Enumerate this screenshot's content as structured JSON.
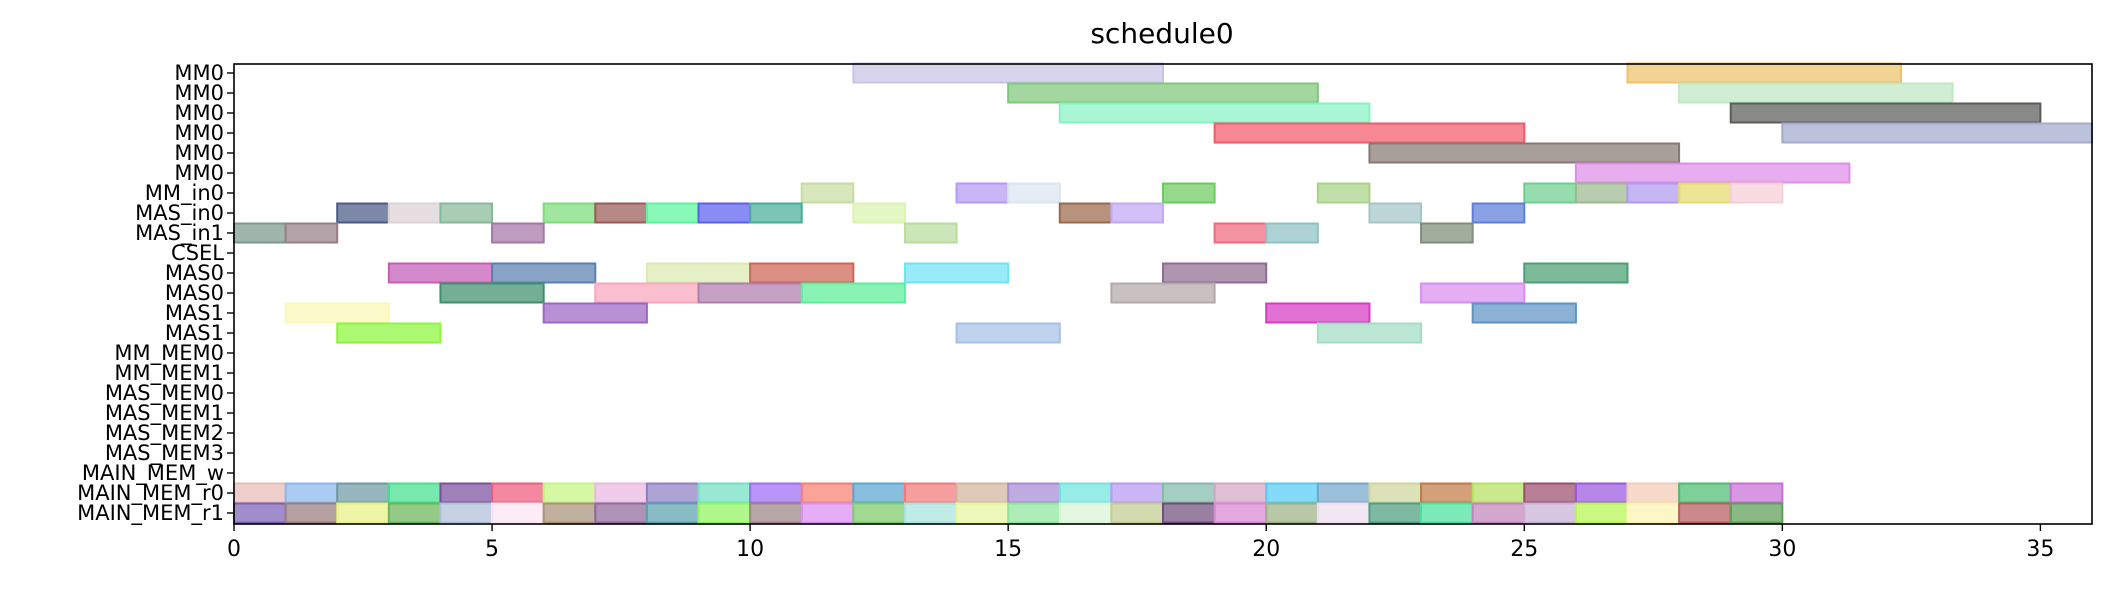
{
  "chart_data": {
    "type": "gantt",
    "title": "schedule0",
    "xlabel": "",
    "ylabel": "",
    "xlim": [
      0,
      36
    ],
    "xticks": [
      "0",
      "5",
      "10",
      "15",
      "20",
      "25",
      "30",
      "35"
    ],
    "rows": [
      "MM0",
      "MM0",
      "MM0",
      "MM0",
      "MM0",
      "MM0",
      "MM_in0",
      "MAS_in0",
      "MAS_in1",
      "CSEL",
      "MAS0",
      "MAS0",
      "MAS1",
      "MAS1",
      "MM_MEM0",
      "MM_MEM1",
      "MAS_MEM0",
      "MAS_MEM1",
      "MAS_MEM2",
      "MAS_MEM3",
      "MAIN_MEM_w",
      "MAIN_MEM_r0",
      "MAIN_MEM_r1"
    ],
    "bars": [
      {
        "row": 0,
        "start": 12,
        "end": 18,
        "color": "#c9c3e8"
      },
      {
        "row": 0,
        "start": 27,
        "end": 32.3,
        "color": "#eec26a"
      },
      {
        "row": 1,
        "start": 15,
        "end": 21,
        "color": "#7fc77a"
      },
      {
        "row": 1,
        "start": 28,
        "end": 33.3,
        "color": "#bfe8c4"
      },
      {
        "row": 2,
        "start": 16,
        "end": 22,
        "color": "#88f2c4"
      },
      {
        "row": 2,
        "start": 29,
        "end": 35,
        "color": "#5b5d5a"
      },
      {
        "row": 3,
        "start": 19,
        "end": 25,
        "color": "#f25a6b"
      },
      {
        "row": 3,
        "start": 30,
        "end": 36,
        "color": "#a4abcd"
      },
      {
        "row": 4,
        "start": 22,
        "end": 28,
        "color": "#877873"
      },
      {
        "row": 5,
        "start": 26,
        "end": 31.3,
        "color": "#df8de9"
      },
      {
        "row": 6,
        "start": 11,
        "end": 12,
        "color": "#c7dca3"
      },
      {
        "row": 6,
        "start": 14,
        "end": 15,
        "color": "#b49af4"
      },
      {
        "row": 6,
        "start": 15,
        "end": 16,
        "color": "#dbe4ef"
      },
      {
        "row": 6,
        "start": 18,
        "end": 19,
        "color": "#6ccb5e"
      },
      {
        "row": 6,
        "start": 21,
        "end": 22,
        "color": "#a8d38a"
      },
      {
        "row": 6,
        "start": 25,
        "end": 26,
        "color": "#6fcf8f"
      },
      {
        "row": 6,
        "start": 26,
        "end": 27,
        "color": "#9cb98f"
      },
      {
        "row": 6,
        "start": 27,
        "end": 28,
        "color": "#b19af0"
      },
      {
        "row": 6,
        "start": 28,
        "end": 29,
        "color": "#e6da6e"
      },
      {
        "row": 6,
        "start": 29,
        "end": 30,
        "color": "#f4cfd5"
      },
      {
        "row": 7,
        "start": 2,
        "end": 3,
        "color": "#4b5a86"
      },
      {
        "row": 7,
        "start": 3,
        "end": 4,
        "color": "#ddd3d6"
      },
      {
        "row": 7,
        "start": 4,
        "end": 5,
        "color": "#86b997"
      },
      {
        "row": 7,
        "start": 6,
        "end": 7,
        "color": "#7ddd79"
      },
      {
        "row": 7,
        "start": 7,
        "end": 8,
        "color": "#9b5b58"
      },
      {
        "row": 7,
        "start": 8,
        "end": 9,
        "color": "#5bf59e"
      },
      {
        "row": 7,
        "start": 9,
        "end": 10,
        "color": "#5a60ee"
      },
      {
        "row": 7,
        "start": 10,
        "end": 11,
        "color": "#46ae98"
      },
      {
        "row": 7,
        "start": 12,
        "end": 13,
        "color": "#d9f5ae"
      },
      {
        "row": 7,
        "start": 16,
        "end": 17,
        "color": "#9b6a4b"
      },
      {
        "row": 7,
        "start": 17,
        "end": 18,
        "color": "#c3a8f5"
      },
      {
        "row": 7,
        "start": 22,
        "end": 23,
        "color": "#a5c6c7"
      },
      {
        "row": 7,
        "start": 24,
        "end": 25,
        "color": "#5d7ed9"
      },
      {
        "row": 8,
        "start": 0,
        "end": 1,
        "color": "#7c9a8d"
      },
      {
        "row": 8,
        "start": 1,
        "end": 2,
        "color": "#977f86"
      },
      {
        "row": 8,
        "start": 5,
        "end": 6,
        "color": "#a576a7"
      },
      {
        "row": 8,
        "start": 13,
        "end": 14,
        "color": "#b9dca0"
      },
      {
        "row": 8,
        "start": 19,
        "end": 20,
        "color": "#ef6a7e"
      },
      {
        "row": 8,
        "start": 20,
        "end": 21,
        "color": "#8fc1c2"
      },
      {
        "row": 8,
        "start": 23,
        "end": 24,
        "color": "#7e8e78"
      },
      {
        "row": 10,
        "start": 3,
        "end": 5,
        "color": "#c45db6"
      },
      {
        "row": 10,
        "start": 5,
        "end": 7,
        "color": "#5b7fb0"
      },
      {
        "row": 10,
        "start": 8,
        "end": 10,
        "color": "#dceab0"
      },
      {
        "row": 10,
        "start": 10,
        "end": 12,
        "color": "#cd6555"
      },
      {
        "row": 10,
        "start": 13,
        "end": 15,
        "color": "#72e3f4"
      },
      {
        "row": 10,
        "start": 18,
        "end": 20,
        "color": "#8f6c91"
      },
      {
        "row": 10,
        "start": 25,
        "end": 27,
        "color": "#4b9f73"
      },
      {
        "row": 11,
        "start": 4,
        "end": 6,
        "color": "#3f8f6c"
      },
      {
        "row": 11,
        "start": 7,
        "end": 9,
        "color": "#f8a6bd"
      },
      {
        "row": 11,
        "start": 9,
        "end": 11,
        "color": "#b17dae"
      },
      {
        "row": 11,
        "start": 11,
        "end": 13,
        "color": "#5cef9a"
      },
      {
        "row": 11,
        "start": 17,
        "end": 19,
        "color": "#b3a9ab"
      },
      {
        "row": 11,
        "start": 23,
        "end": 25,
        "color": "#da8df0"
      },
      {
        "row": 12,
        "start": 1,
        "end": 3,
        "color": "#fbf8b6"
      },
      {
        "row": 12,
        "start": 6,
        "end": 8,
        "color": "#9c66c4"
      },
      {
        "row": 12,
        "start": 20,
        "end": 22,
        "color": "#d53bc4"
      },
      {
        "row": 12,
        "start": 24,
        "end": 26,
        "color": "#5e93c3"
      },
      {
        "row": 13,
        "start": 2,
        "end": 4,
        "color": "#8cf53c"
      },
      {
        "row": 13,
        "start": 14,
        "end": 16,
        "color": "#a6c0e7"
      },
      {
        "row": 13,
        "start": 21,
        "end": 23,
        "color": "#a2dec5"
      },
      {
        "row": 21,
        "start": 0,
        "end": 1,
        "color": "#e8bcb5"
      },
      {
        "row": 21,
        "start": 1,
        "end": 2,
        "color": "#8ab7ee"
      },
      {
        "row": 21,
        "start": 2,
        "end": 3,
        "color": "#6f9aa4"
      },
      {
        "row": 21,
        "start": 3,
        "end": 4,
        "color": "#44e08d"
      },
      {
        "row": 21,
        "start": 4,
        "end": 5,
        "color": "#7b4f9c"
      },
      {
        "row": 21,
        "start": 5,
        "end": 6,
        "color": "#ef5c7c"
      },
      {
        "row": 21,
        "start": 6,
        "end": 7,
        "color": "#c4f57f"
      },
      {
        "row": 21,
        "start": 7,
        "end": 8,
        "color": "#eab8e2"
      },
      {
        "row": 21,
        "start": 8,
        "end": 9,
        "color": "#8e7fc3"
      },
      {
        "row": 21,
        "start": 9,
        "end": 10,
        "color": "#6fe1c4"
      },
      {
        "row": 21,
        "start": 10,
        "end": 11,
        "color": "#a06cf5"
      },
      {
        "row": 21,
        "start": 11,
        "end": 12,
        "color": "#f77f71"
      },
      {
        "row": 21,
        "start": 12,
        "end": 13,
        "color": "#5aa6d3"
      },
      {
        "row": 21,
        "start": 13,
        "end": 14,
        "color": "#f4787a"
      },
      {
        "row": 21,
        "start": 14,
        "end": 15,
        "color": "#d3b59f"
      },
      {
        "row": 21,
        "start": 15,
        "end": 16,
        "color": "#a88ad5"
      },
      {
        "row": 21,
        "start": 16,
        "end": 17,
        "color": "#6ee4dc"
      },
      {
        "row": 21,
        "start": 17,
        "end": 18,
        "color": "#b89af3"
      },
      {
        "row": 21,
        "start": 18,
        "end": 19,
        "color": "#7fbba9"
      },
      {
        "row": 21,
        "start": 19,
        "end": 20,
        "color": "#d3a7c4"
      },
      {
        "row": 21,
        "start": 20,
        "end": 21,
        "color": "#55ccf4"
      },
      {
        "row": 21,
        "start": 21,
        "end": 22,
        "color": "#75a7cc"
      },
      {
        "row": 21,
        "start": 22,
        "end": 23,
        "color": "#cfd59c"
      },
      {
        "row": 21,
        "start": 23,
        "end": 24,
        "color": "#c07b45"
      },
      {
        "row": 21,
        "start": 24,
        "end": 25,
        "color": "#b6e15f"
      },
      {
        "row": 21,
        "start": 25,
        "end": 26,
        "color": "#9b4f6c"
      },
      {
        "row": 21,
        "start": 26,
        "end": 27,
        "color": "#9a57e0"
      },
      {
        "row": 21,
        "start": 27,
        "end": 28,
        "color": "#f5ccb5"
      },
      {
        "row": 21,
        "start": 28,
        "end": 29,
        "color": "#4cbd70"
      },
      {
        "row": 21,
        "start": 29,
        "end": 30,
        "color": "#c86fd8"
      },
      {
        "row": 22,
        "start": 0,
        "end": 1,
        "color": "#7b61b4"
      },
      {
        "row": 22,
        "start": 1,
        "end": 2,
        "color": "#9a7d7e"
      },
      {
        "row": 22,
        "start": 2,
        "end": 3,
        "color": "#e8f184"
      },
      {
        "row": 22,
        "start": 3,
        "end": 4,
        "color": "#6ab659"
      },
      {
        "row": 22,
        "start": 4,
        "end": 5,
        "color": "#b0bfd8"
      },
      {
        "row": 22,
        "start": 5,
        "end": 6,
        "color": "#fbe4f1"
      },
      {
        "row": 22,
        "start": 6,
        "end": 7,
        "color": "#a89378"
      },
      {
        "row": 22,
        "start": 7,
        "end": 8,
        "color": "#8f6a9b"
      },
      {
        "row": 22,
        "start": 8,
        "end": 9,
        "color": "#5ba2ad"
      },
      {
        "row": 22,
        "start": 9,
        "end": 10,
        "color": "#91f560"
      },
      {
        "row": 22,
        "start": 10,
        "end": 11,
        "color": "#9d8588"
      },
      {
        "row": 22,
        "start": 11,
        "end": 12,
        "color": "#d98ef3"
      },
      {
        "row": 22,
        "start": 12,
        "end": 13,
        "color": "#80cc6a"
      },
      {
        "row": 22,
        "start": 13,
        "end": 14,
        "color": "#a8e3de"
      },
      {
        "row": 22,
        "start": 14,
        "end": 15,
        "color": "#e7f79e"
      },
      {
        "row": 22,
        "start": 15,
        "end": 16,
        "color": "#8fe59c"
      },
      {
        "row": 22,
        "start": 16,
        "end": 17,
        "color": "#d9f5d5"
      },
      {
        "row": 22,
        "start": 17,
        "end": 18,
        "color": "#c2cc92"
      },
      {
        "row": 22,
        "start": 18,
        "end": 19,
        "color": "#6f4f7c"
      },
      {
        "row": 22,
        "start": 19,
        "end": 20,
        "color": "#d888d3"
      },
      {
        "row": 22,
        "start": 20,
        "end": 21,
        "color": "#9cb185"
      },
      {
        "row": 22,
        "start": 21,
        "end": 22,
        "color": "#efdcef"
      },
      {
        "row": 22,
        "start": 22,
        "end": 23,
        "color": "#4f9e80"
      },
      {
        "row": 22,
        "start": 23,
        "end": 24,
        "color": "#4be2a0"
      },
      {
        "row": 22,
        "start": 24,
        "end": 25,
        "color": "#c485bd"
      },
      {
        "row": 22,
        "start": 25,
        "end": 26,
        "color": "#c7b1d5"
      },
      {
        "row": 22,
        "start": 26,
        "end": 27,
        "color": "#b7f550"
      },
      {
        "row": 22,
        "start": 27,
        "end": 28,
        "color": "#fcf3b2"
      },
      {
        "row": 22,
        "start": 28,
        "end": 29,
        "color": "#b95c5e"
      },
      {
        "row": 22,
        "start": 29,
        "end": 30,
        "color": "#5d9e57"
      }
    ]
  }
}
